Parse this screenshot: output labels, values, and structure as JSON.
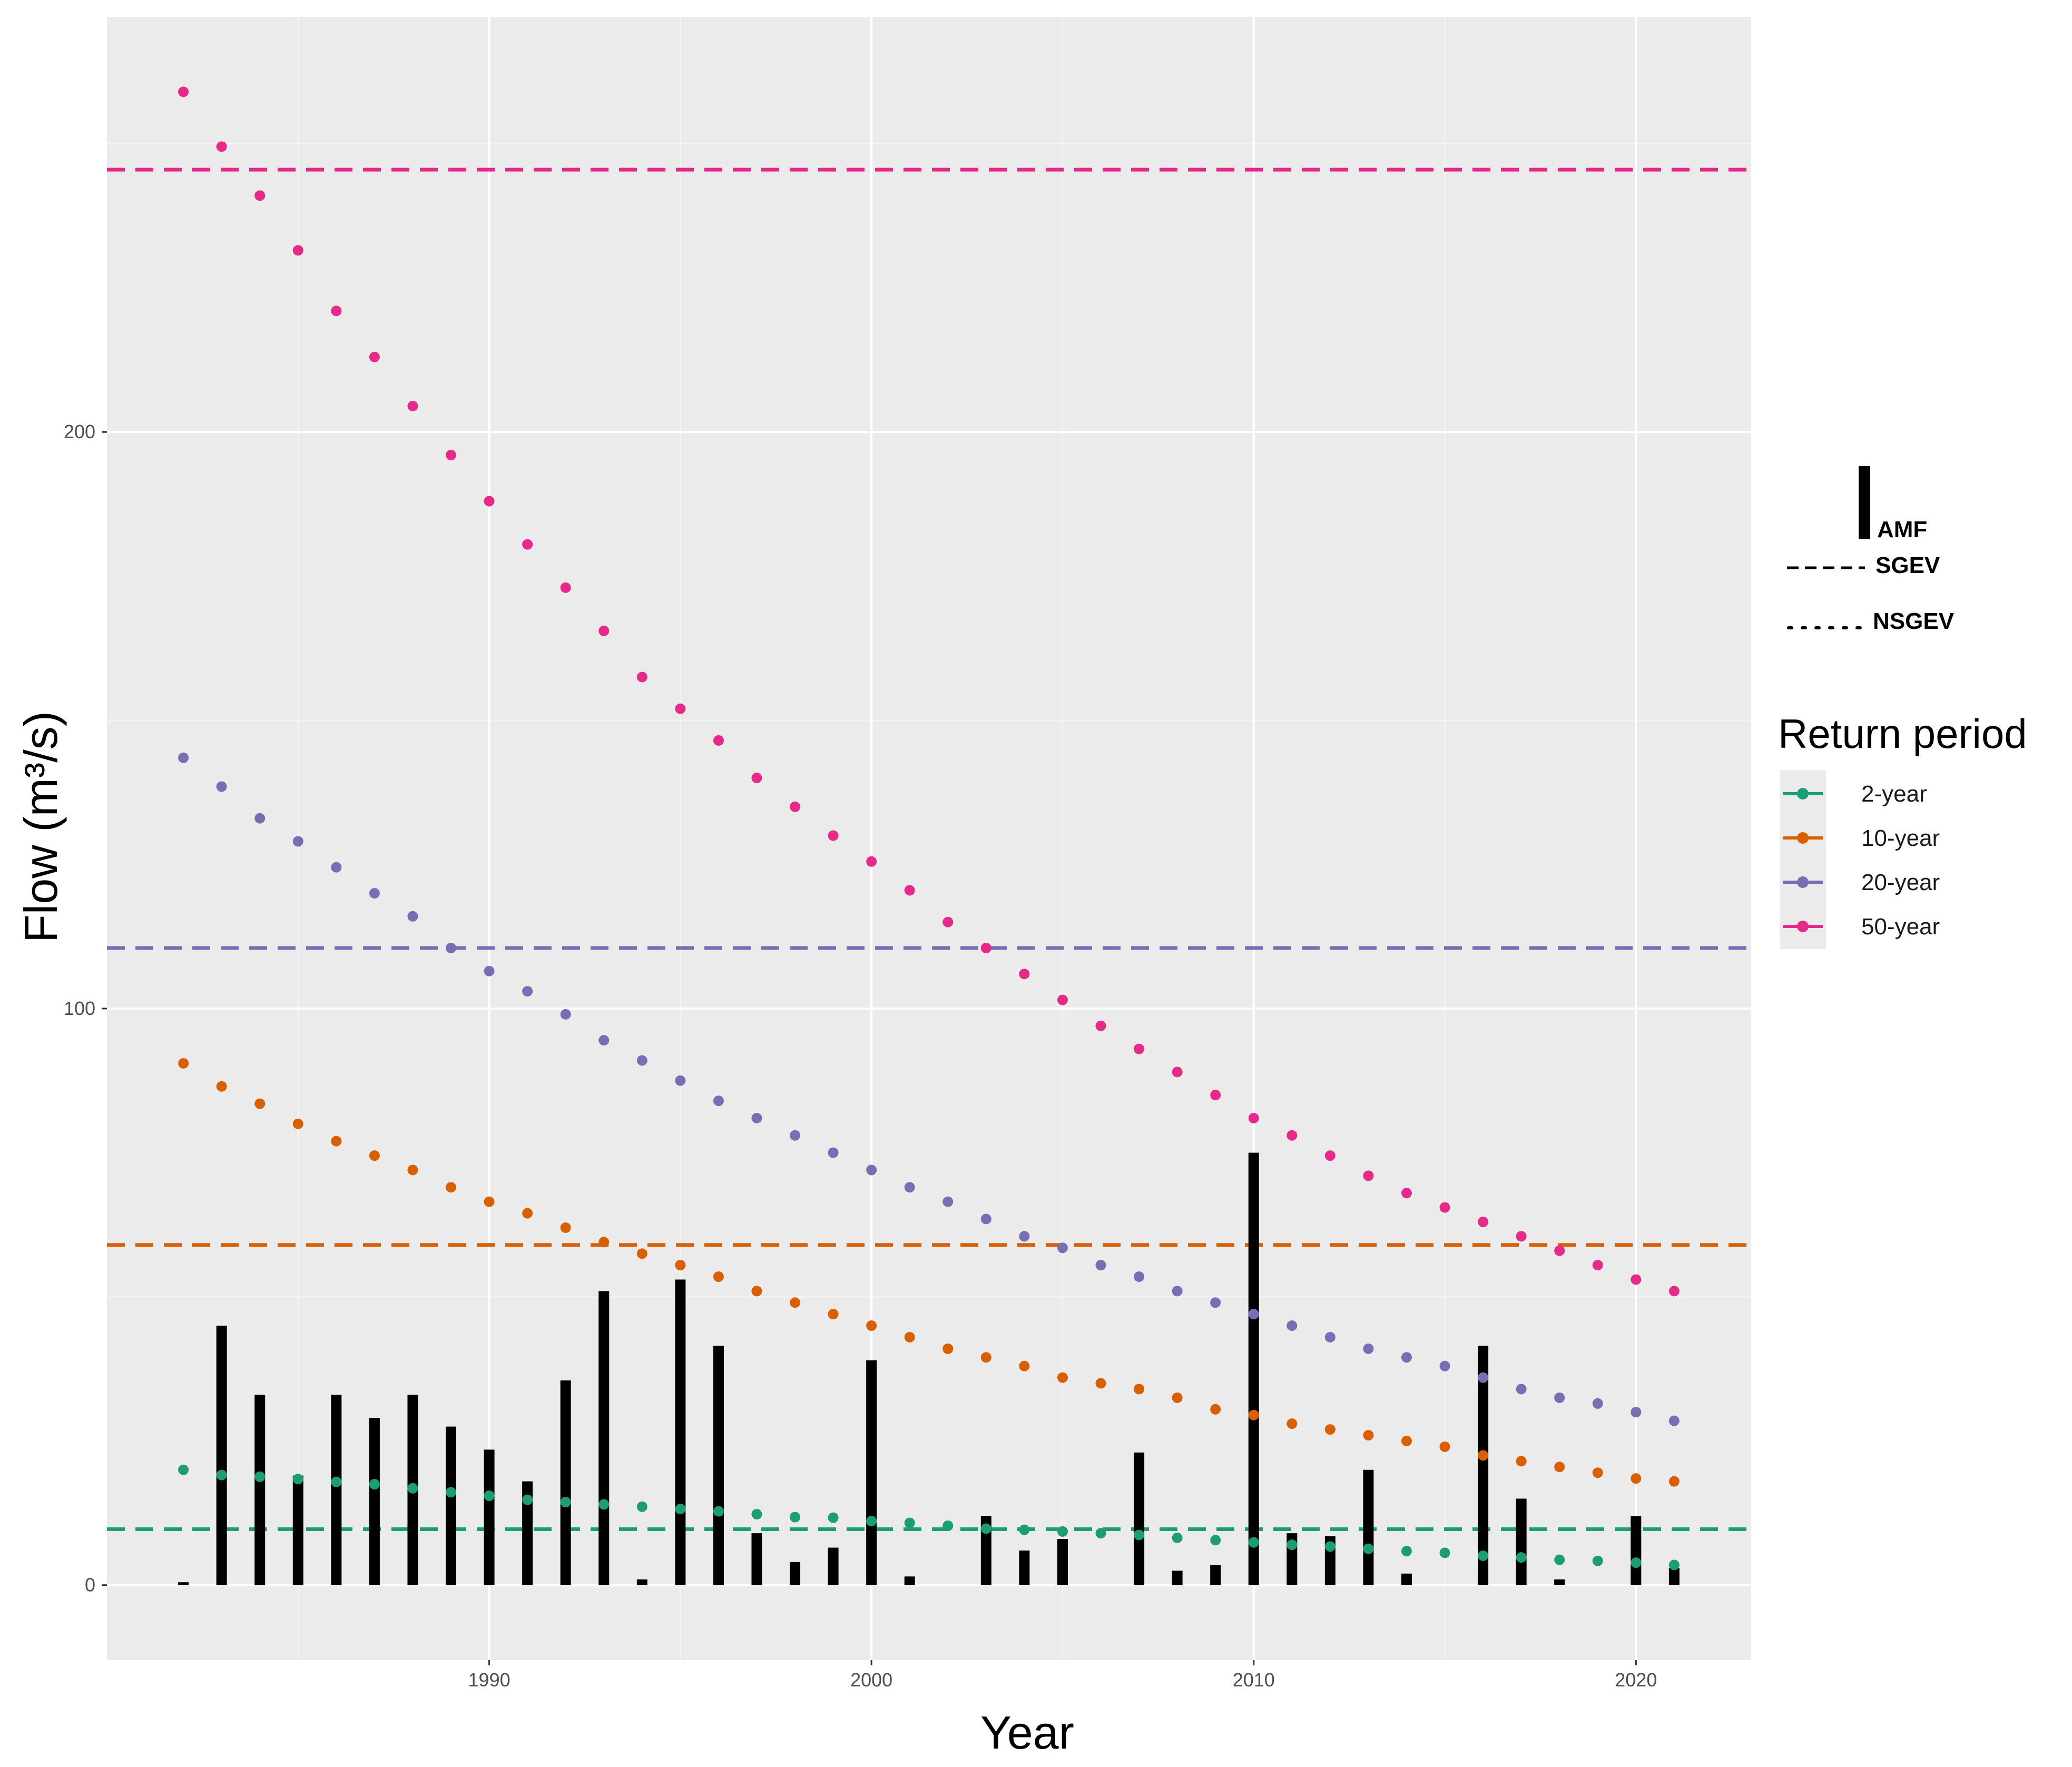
{
  "chart_data": {
    "type": "bar",
    "xlabel": "Year",
    "ylabel": "Flow (m³/s)",
    "xlim": [
      1980,
      2023
    ],
    "ylim": [
      -13,
      272
    ],
    "x_ticks": [
      1990,
      2000,
      2010,
      2020
    ],
    "y_ticks": [
      0,
      100,
      200
    ],
    "grid": true,
    "legend_position": "right",
    "years": [
      1982,
      1983,
      1984,
      1985,
      1986,
      1987,
      1988,
      1989,
      1990,
      1991,
      1992,
      1993,
      1994,
      1995,
      1996,
      1997,
      1998,
      1999,
      2000,
      2001,
      2002,
      2003,
      2004,
      2005,
      2006,
      2007,
      2008,
      2009,
      2010,
      2011,
      2012,
      2013,
      2014,
      2015,
      2016,
      2017,
      2018,
      2019,
      2020,
      2021
    ],
    "amf": {
      "name": "AMF",
      "color": "#000000",
      "values": [
        0.5,
        45,
        33,
        19,
        33,
        29,
        33,
        27.5,
        23.5,
        18,
        35.5,
        51,
        1,
        53,
        41.5,
        9,
        4,
        6.5,
        39,
        1.5,
        0,
        12,
        6,
        8,
        0,
        23,
        2.5,
        3.5,
        75,
        9,
        8.5,
        20,
        2,
        0,
        41.5,
        15,
        1,
        0,
        12,
        3
      ]
    },
    "sgev": {
      "name": "SGEV",
      "values": {
        "2-year": 9.7,
        "10-year": 59,
        "20-year": 110.5,
        "50-year": 245.5
      }
    },
    "nsgev": {
      "name": "NSGEV",
      "series": [
        {
          "name": "2-year",
          "color": "#1b9e77",
          "values": [
            20.0,
            19.1,
            18.8,
            18.4,
            17.9,
            17.5,
            16.8,
            16.1,
            15.5,
            14.8,
            14.4,
            14.0,
            13.6,
            13.2,
            12.8,
            12.3,
            11.8,
            11.7,
            11.1,
            10.8,
            10.3,
            9.8,
            9.6,
            9.3,
            9.0,
            8.7,
            8.2,
            7.8,
            7.4,
            7.0,
            6.7,
            6.3,
            5.9,
            5.6,
            5.1,
            4.8,
            4.4,
            4.2,
            3.9,
            3.5
          ]
        },
        {
          "name": "10-year",
          "color": "#d95f02",
          "values": [
            90.5,
            86.5,
            83.5,
            80.0,
            77.0,
            74.5,
            72.0,
            69.0,
            66.5,
            64.5,
            62.0,
            59.5,
            57.5,
            55.5,
            53.5,
            51.0,
            49.0,
            47.0,
            45.0,
            43.0,
            41.0,
            39.5,
            38.0,
            36.0,
            35.0,
            34.0,
            32.5,
            30.5,
            29.5,
            28.0,
            27.0,
            26.0,
            25.0,
            24.0,
            22.5,
            21.5,
            20.5,
            19.5,
            18.5,
            18.0
          ]
        },
        {
          "name": "20-year",
          "color": "#7570b3",
          "values": [
            143.5,
            138.5,
            133,
            129,
            124.5,
            120,
            116,
            110.5,
            106.5,
            103,
            99,
            94.5,
            91,
            87.5,
            84,
            81,
            78,
            75,
            72,
            69,
            66.5,
            63.5,
            60.5,
            58.5,
            55.5,
            53.5,
            51,
            49,
            47,
            45,
            43,
            41,
            39.5,
            38,
            36,
            34,
            32.5,
            31.5,
            30,
            28.5
          ]
        },
        {
          "name": "50-year",
          "color": "#e7298a",
          "values": [
            259,
            249.5,
            241,
            231.5,
            221,
            213,
            204.5,
            196,
            188,
            180.5,
            173,
            165.5,
            157.5,
            152,
            146.5,
            140,
            135,
            130,
            125.5,
            120.5,
            115,
            110.5,
            106,
            101.5,
            97,
            93,
            89,
            85,
            81,
            78,
            74.5,
            71,
            68,
            65.5,
            63,
            60.5,
            58,
            55.5,
            53,
            51
          ]
        }
      ]
    },
    "legend": {
      "key_amf": "AMF",
      "key_sgev": "SGEV",
      "key_nsgev": "NSGEV",
      "title": "Return period",
      "items": [
        "2-year",
        "10-year",
        "20-year",
        "50-year"
      ]
    }
  }
}
